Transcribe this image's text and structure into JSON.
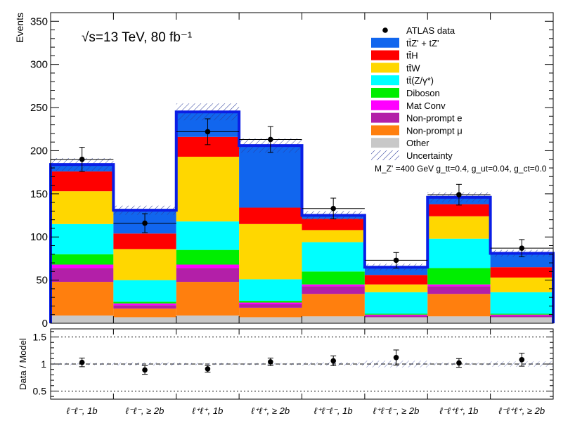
{
  "chart_data": {
    "type": "bar",
    "stacked": true,
    "categories": [
      "ℓ⁻ℓ⁻, 1b",
      "ℓ⁻ℓ⁻, ≥ 2b",
      "ℓ⁺ℓ⁺, 1b",
      "ℓ⁺ℓ⁺, ≥ 2b",
      "ℓ⁺ℓ⁻ℓ⁻, 1b",
      "ℓ⁺ℓ⁻ℓ⁻, ≥ 2b",
      "ℓ⁻ℓ⁺ℓ⁺, 1b",
      "ℓ⁻ℓ⁺ℓ⁺, ≥ 2b"
    ],
    "annotation": "√s=13 TeV, 80 fb⁻¹",
    "signal_label": "M_Z' =400 GeV g_tt=0.4, g_ut=0.04, g_ct=0.0",
    "ylabel": "Events",
    "ylim": [
      0,
      360
    ],
    "yticks": [
      0,
      50,
      100,
      150,
      200,
      250,
      300,
      350
    ],
    "legend_position": "top-right",
    "series": [
      {
        "name": "Other",
        "color": "#c8c8c8",
        "values": [
          9,
          7,
          9,
          7,
          8,
          7,
          8,
          7
        ]
      },
      {
        "name": "Non-prompt μ",
        "color": "#ff7f0e",
        "values": [
          39,
          10,
          39,
          11,
          26,
          0,
          26,
          0
        ]
      },
      {
        "name": "Non-prompt e",
        "color": "#b31fa8",
        "values": [
          16,
          4,
          16,
          4,
          9,
          2,
          9,
          2
        ]
      },
      {
        "name": "Mat Conv",
        "color": "#ff00ff",
        "values": [
          4,
          2,
          4,
          2,
          2,
          1,
          2,
          1
        ]
      },
      {
        "name": "Diboson",
        "color": "#00ee00",
        "values": [
          12,
          2,
          17,
          2,
          15,
          1,
          19,
          1
        ]
      },
      {
        "name": "tt̄(Z/γ*)",
        "color": "#00ffff",
        "values": [
          35,
          25,
          33,
          25,
          34,
          25,
          34,
          25
        ]
      },
      {
        "name": "tt̄W",
        "color": "#ffd700",
        "values": [
          38,
          36,
          75,
          64,
          14,
          9,
          26,
          17
        ]
      },
      {
        "name": "tt̄H",
        "color": "#ff0000",
        "values": [
          23,
          18,
          23,
          19,
          13,
          11,
          14,
          12
        ]
      },
      {
        "name": "tt̄Z' + tZ'",
        "color": "#1166ee",
        "values": [
          8,
          27,
          29,
          72,
          4,
          9,
          8,
          16
        ]
      }
    ],
    "total": [
      184,
      131,
      245,
      206,
      125,
      65,
      146,
      81
    ],
    "data": {
      "name": "ATLAS data",
      "values": [
        190,
        116,
        222,
        213,
        133,
        73,
        149,
        87
      ],
      "errors": [
        14,
        11,
        15,
        15,
        12,
        9,
        12,
        10
      ]
    },
    "uncertainty_name": "Uncertainty",
    "ratio": {
      "ylabel": "Data / Model",
      "ylim": [
        0.35,
        1.65
      ],
      "yticks": [
        0.5,
        1,
        1.5
      ],
      "values": [
        1.03,
        0.89,
        0.91,
        1.04,
        1.06,
        1.12,
        1.02,
        1.08
      ],
      "errors": [
        0.08,
        0.08,
        0.06,
        0.07,
        0.09,
        0.14,
        0.08,
        0.12
      ]
    }
  }
}
